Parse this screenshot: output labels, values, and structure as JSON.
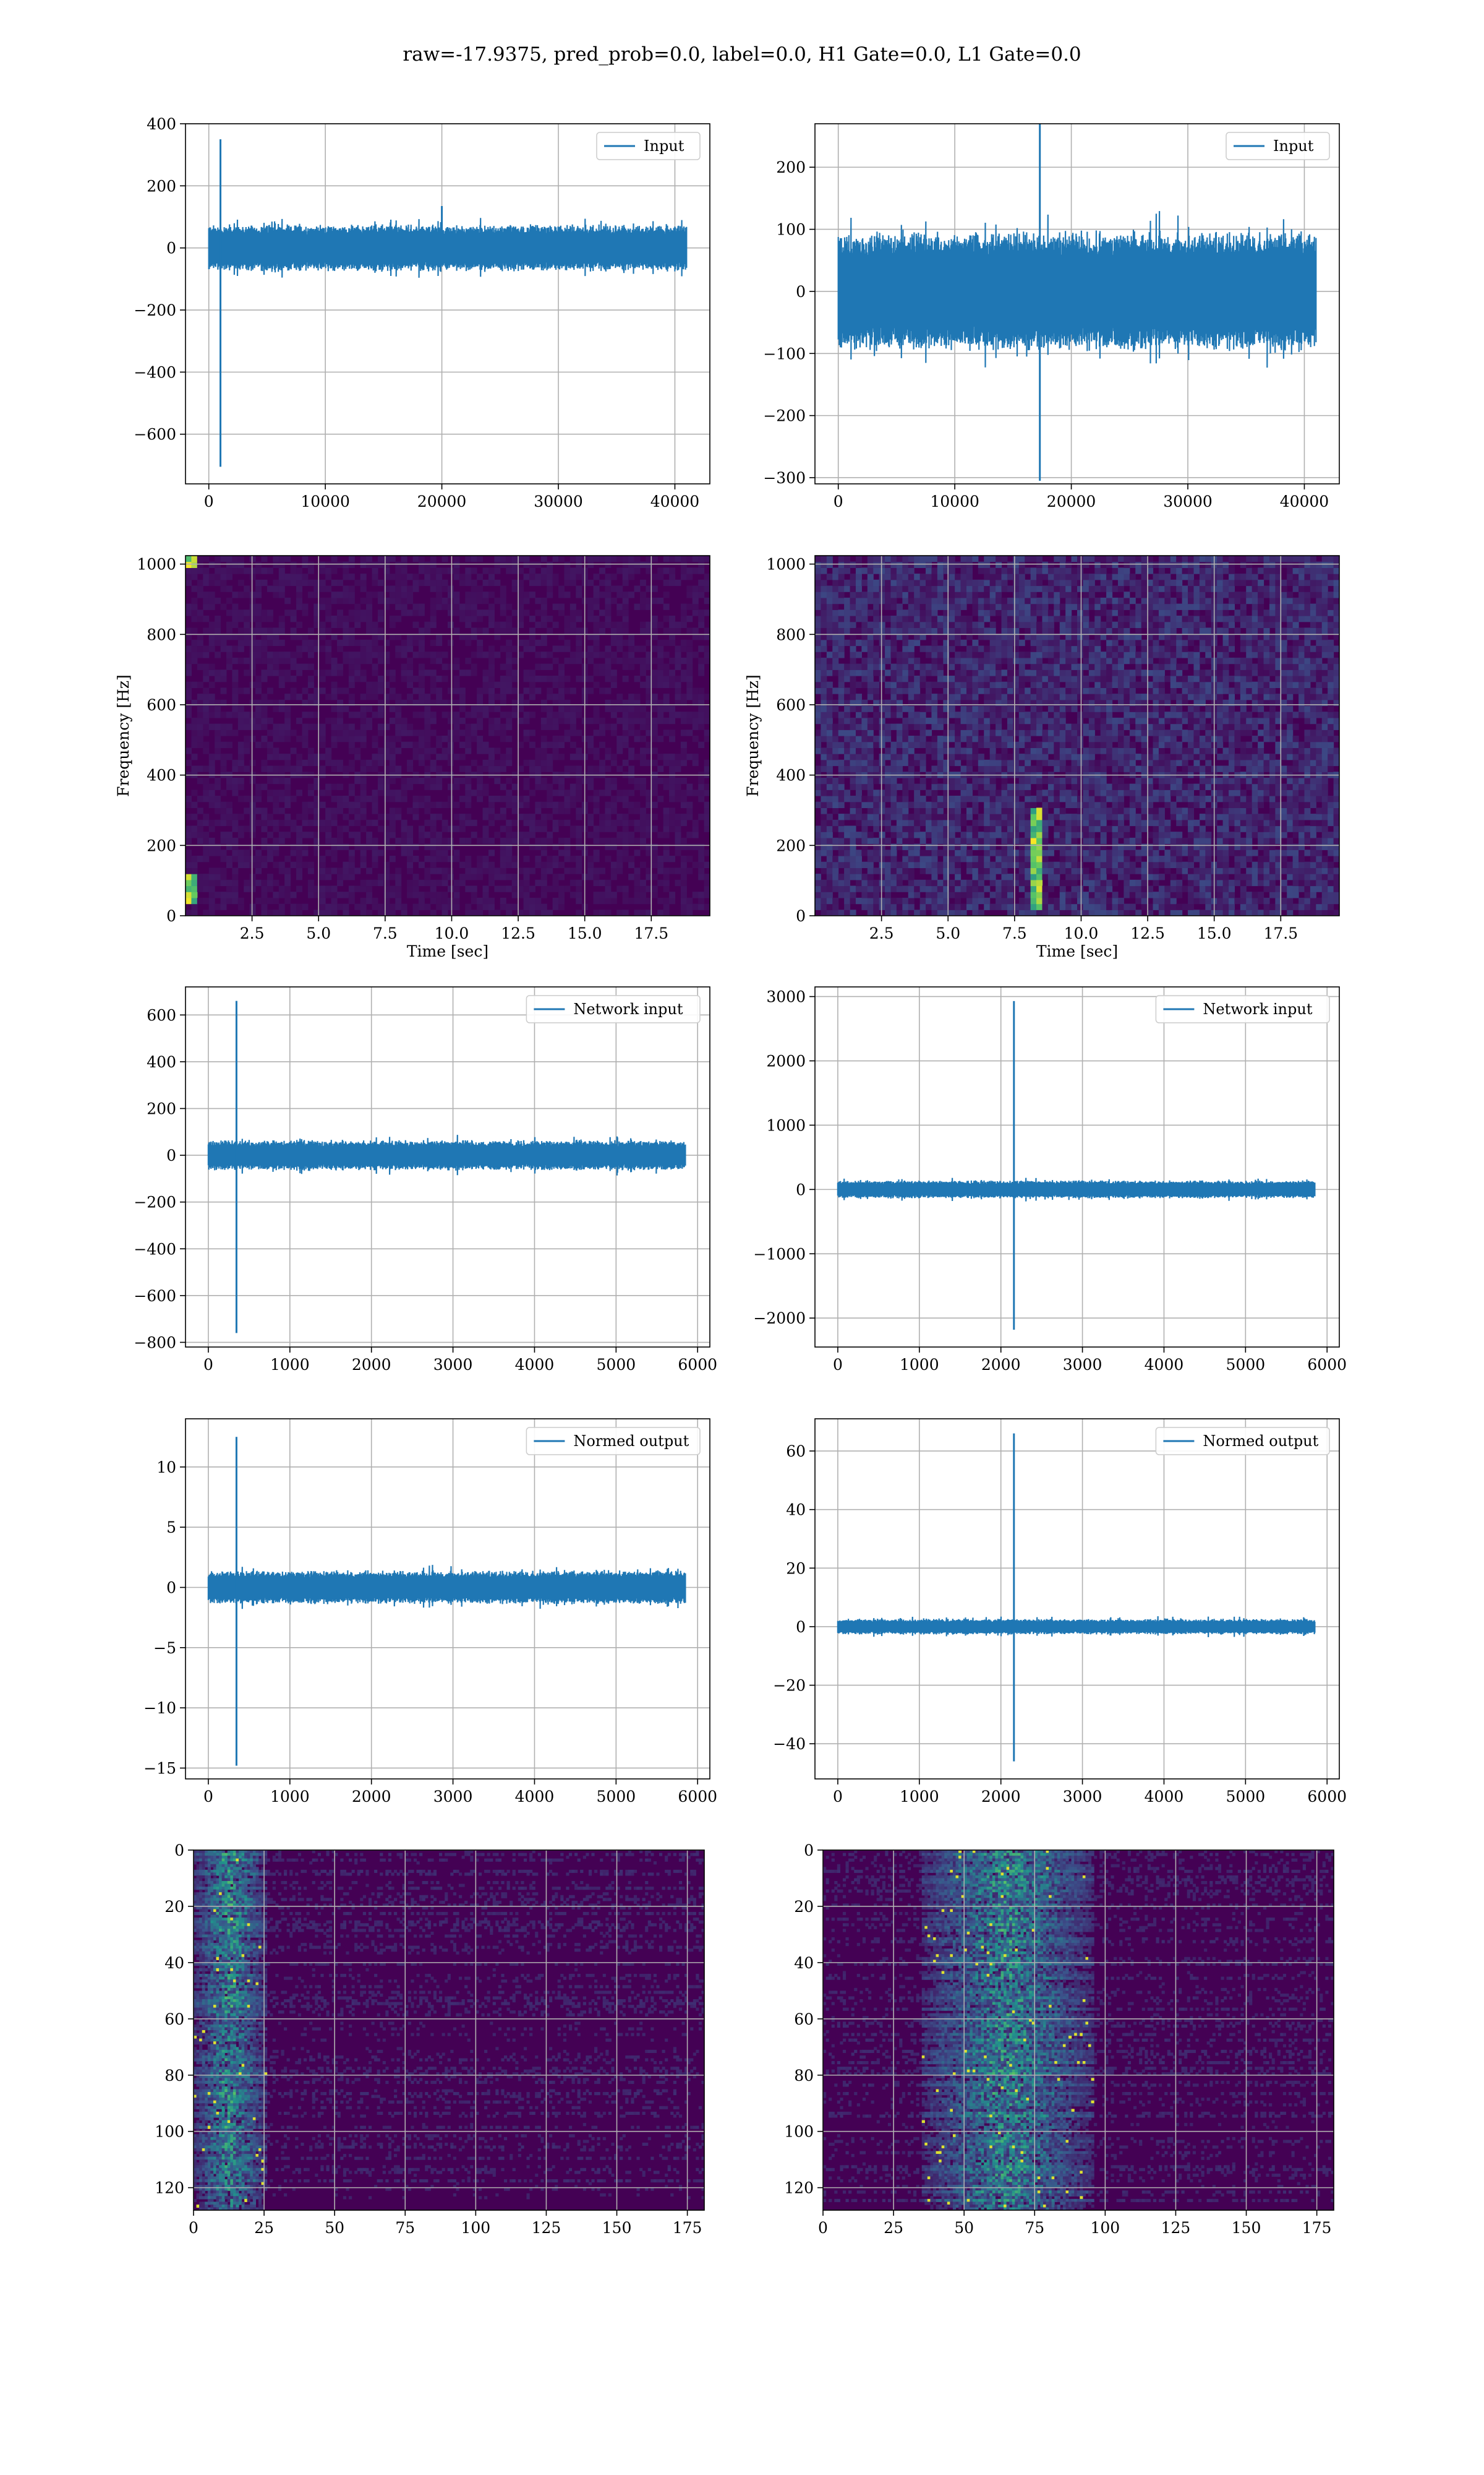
{
  "title": "raw=-17.9375, pred_prob=0.0, label=0.0, H1 Gate=0.0, L1 Gate=0.0",
  "colors": {
    "line": "#1f77b4",
    "grid": "#b0b0b0",
    "heat_low": "#440154",
    "heat_mid": "#21918c",
    "heat_high": "#fde725"
  },
  "chart_data": [
    {
      "id": "row1-left",
      "type": "line",
      "legend": "Input",
      "xlim": [
        -2000,
        43000
      ],
      "ylim": [
        -760,
        400
      ],
      "xticks": [
        0,
        10000,
        20000,
        30000,
        40000
      ],
      "yticks": [
        400,
        200,
        0,
        -200,
        -400,
        -600
      ],
      "yticklabels": [
        "400",
        "200",
        "0",
        "−200",
        "−400",
        "−600"
      ],
      "noise": {
        "x_start": 0,
        "x_end": 41000,
        "amplitude": 70
      },
      "spikes": [
        {
          "x": 1000,
          "min": -705,
          "max": 350
        },
        {
          "x": 20000,
          "min": -30,
          "max": 135
        }
      ]
    },
    {
      "id": "row1-right",
      "type": "line",
      "legend": "Input",
      "xlim": [
        -2000,
        43000
      ],
      "ylim": [
        -310,
        270
      ],
      "xticks": [
        0,
        10000,
        20000,
        30000,
        40000
      ],
      "yticks": [
        200,
        100,
        0,
        -100,
        -200,
        -300
      ],
      "yticklabels": [
        "200",
        "100",
        "0",
        "−100",
        "−200",
        "−300"
      ],
      "noise": {
        "x_start": 0,
        "x_end": 41000,
        "amplitude": 90
      },
      "spikes": [
        {
          "x": 17300,
          "min": -305,
          "max": 270
        }
      ]
    },
    {
      "id": "row2-left",
      "type": "heatmap",
      "xlabel": "Time [sec]",
      "ylabel": "Frequency [Hz]",
      "xlim": [
        0,
        19.7
      ],
      "ylim": [
        0,
        1024
      ],
      "xticks": [
        2.5,
        5.0,
        7.5,
        10.0,
        12.5,
        15.0,
        17.5
      ],
      "xticklabels": [
        "2.5",
        "5.0",
        "7.5",
        "10.0",
        "12.5",
        "15.0",
        "17.5"
      ],
      "yticks": [
        0,
        200,
        400,
        600,
        800,
        1000
      ],
      "hotspots": [
        {
          "t": 0.3,
          "f_from": 30,
          "f_to": 120
        },
        {
          "t": 0.3,
          "f_from": 990,
          "f_to": 1024
        }
      ]
    },
    {
      "id": "row2-right",
      "type": "heatmap",
      "xlabel": "Time [sec]",
      "ylabel": "Frequency [Hz]",
      "xlim": [
        0,
        19.7
      ],
      "ylim": [
        0,
        1024
      ],
      "xticks": [
        2.5,
        5.0,
        7.5,
        10.0,
        12.5,
        15.0,
        17.5
      ],
      "xticklabels": [
        "2.5",
        "5.0",
        "7.5",
        "10.0",
        "12.5",
        "15.0",
        "17.5"
      ],
      "yticks": [
        0,
        200,
        400,
        600,
        800,
        1000
      ],
      "hotspots": [
        {
          "t": 8.4,
          "f_from": 20,
          "f_to": 300
        }
      ]
    },
    {
      "id": "row3-left",
      "type": "line",
      "legend": "Network input",
      "xlim": [
        -280,
        6150
      ],
      "ylim": [
        -820,
        720
      ],
      "xticks": [
        0,
        1000,
        2000,
        3000,
        4000,
        5000,
        6000
      ],
      "yticks": [
        600,
        400,
        200,
        0,
        -200,
        -400,
        -600,
        -800
      ],
      "yticklabels": [
        "600",
        "400",
        "200",
        "0",
        "−200",
        "−400",
        "−600",
        "−800"
      ],
      "noise": {
        "x_start": 0,
        "x_end": 5850,
        "amplitude": 60
      },
      "spikes": [
        {
          "x": 345,
          "min": -760,
          "max": 660
        }
      ]
    },
    {
      "id": "row3-right",
      "type": "line",
      "legend": "Network input",
      "xlim": [
        -280,
        6150
      ],
      "ylim": [
        -2450,
        3150
      ],
      "xticks": [
        0,
        1000,
        2000,
        3000,
        4000,
        5000,
        6000
      ],
      "yticks": [
        3000,
        2000,
        1000,
        0,
        -1000,
        -2000
      ],
      "yticklabels": [
        "3000",
        "2000",
        "1000",
        "0",
        "−1000",
        "−2000"
      ],
      "noise": {
        "x_start": 0,
        "x_end": 5850,
        "amplitude": 130
      },
      "spikes": [
        {
          "x": 2160,
          "min": -2180,
          "max": 2930
        }
      ]
    },
    {
      "id": "row4-left",
      "type": "line",
      "legend": "Normed output",
      "xlim": [
        -280,
        6150
      ],
      "ylim": [
        -15.9,
        14
      ],
      "xticks": [
        0,
        1000,
        2000,
        3000,
        4000,
        5000,
        6000
      ],
      "yticks": [
        10,
        5,
        0,
        -5,
        -10,
        -15
      ],
      "yticklabels": [
        "10",
        "5",
        "0",
        "−5",
        "−10",
        "−15"
      ],
      "noise": {
        "x_start": 0,
        "x_end": 5850,
        "amplitude": 1.3
      },
      "spikes": [
        {
          "x": 345,
          "min": -14.8,
          "max": 12.5
        }
      ]
    },
    {
      "id": "row4-right",
      "type": "line",
      "legend": "Normed output",
      "xlim": [
        -280,
        6150
      ],
      "ylim": [
        -52,
        71
      ],
      "xticks": [
        0,
        1000,
        2000,
        3000,
        4000,
        5000,
        6000
      ],
      "yticks": [
        60,
        40,
        20,
        0,
        -20,
        -40
      ],
      "yticklabels": [
        "60",
        "40",
        "20",
        "0",
        "−20",
        "−40"
      ],
      "noise": {
        "x_start": 0,
        "x_end": 5850,
        "amplitude": 2.5
      },
      "spikes": [
        {
          "x": 2160,
          "min": -46,
          "max": 66
        }
      ]
    },
    {
      "id": "row5-left",
      "type": "heatmap",
      "xlim": [
        0,
        181
      ],
      "ylim": [
        0,
        128
      ],
      "xticks": [
        0,
        25,
        50,
        75,
        100,
        125,
        150,
        175
      ],
      "yticks": [
        0,
        20,
        40,
        60,
        80,
        100,
        120
      ],
      "hot_band": {
        "x_from": 0,
        "x_to": 25
      }
    },
    {
      "id": "row5-right",
      "type": "heatmap",
      "xlim": [
        0,
        181
      ],
      "ylim": [
        0,
        128
      ],
      "xticks": [
        0,
        25,
        50,
        75,
        100,
        125,
        150,
        175
      ],
      "yticks": [
        0,
        20,
        40,
        60,
        80,
        100,
        120
      ],
      "hot_band": {
        "x_from": 35,
        "x_to": 95
      }
    }
  ]
}
